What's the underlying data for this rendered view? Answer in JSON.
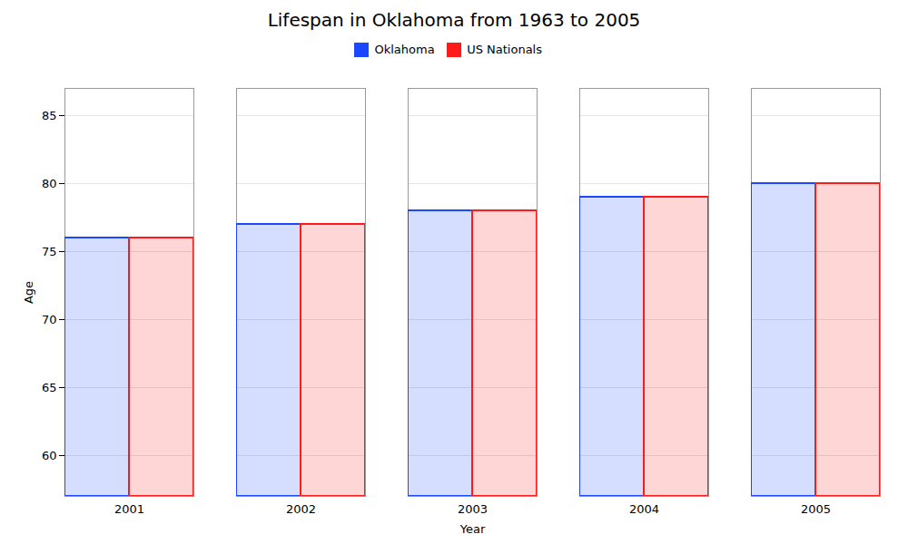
{
  "chart_data": {
    "type": "bar",
    "title": "Lifespan in Oklahoma from 1963 to 2005",
    "xlabel": "Year",
    "ylabel": "Age",
    "categories": [
      "2001",
      "2002",
      "2003",
      "2004",
      "2005"
    ],
    "series": [
      {
        "name": "Oklahoma",
        "color": "#1a47ff",
        "values": [
          76,
          77,
          78,
          79,
          80
        ]
      },
      {
        "name": "US Nationals",
        "color": "#ff1a1a",
        "values": [
          76,
          77,
          78,
          79,
          80
        ]
      }
    ],
    "ylim": [
      57,
      87
    ],
    "yticks": [
      60,
      65,
      70,
      75,
      80,
      85
    ],
    "grid": true,
    "legend": "top"
  }
}
